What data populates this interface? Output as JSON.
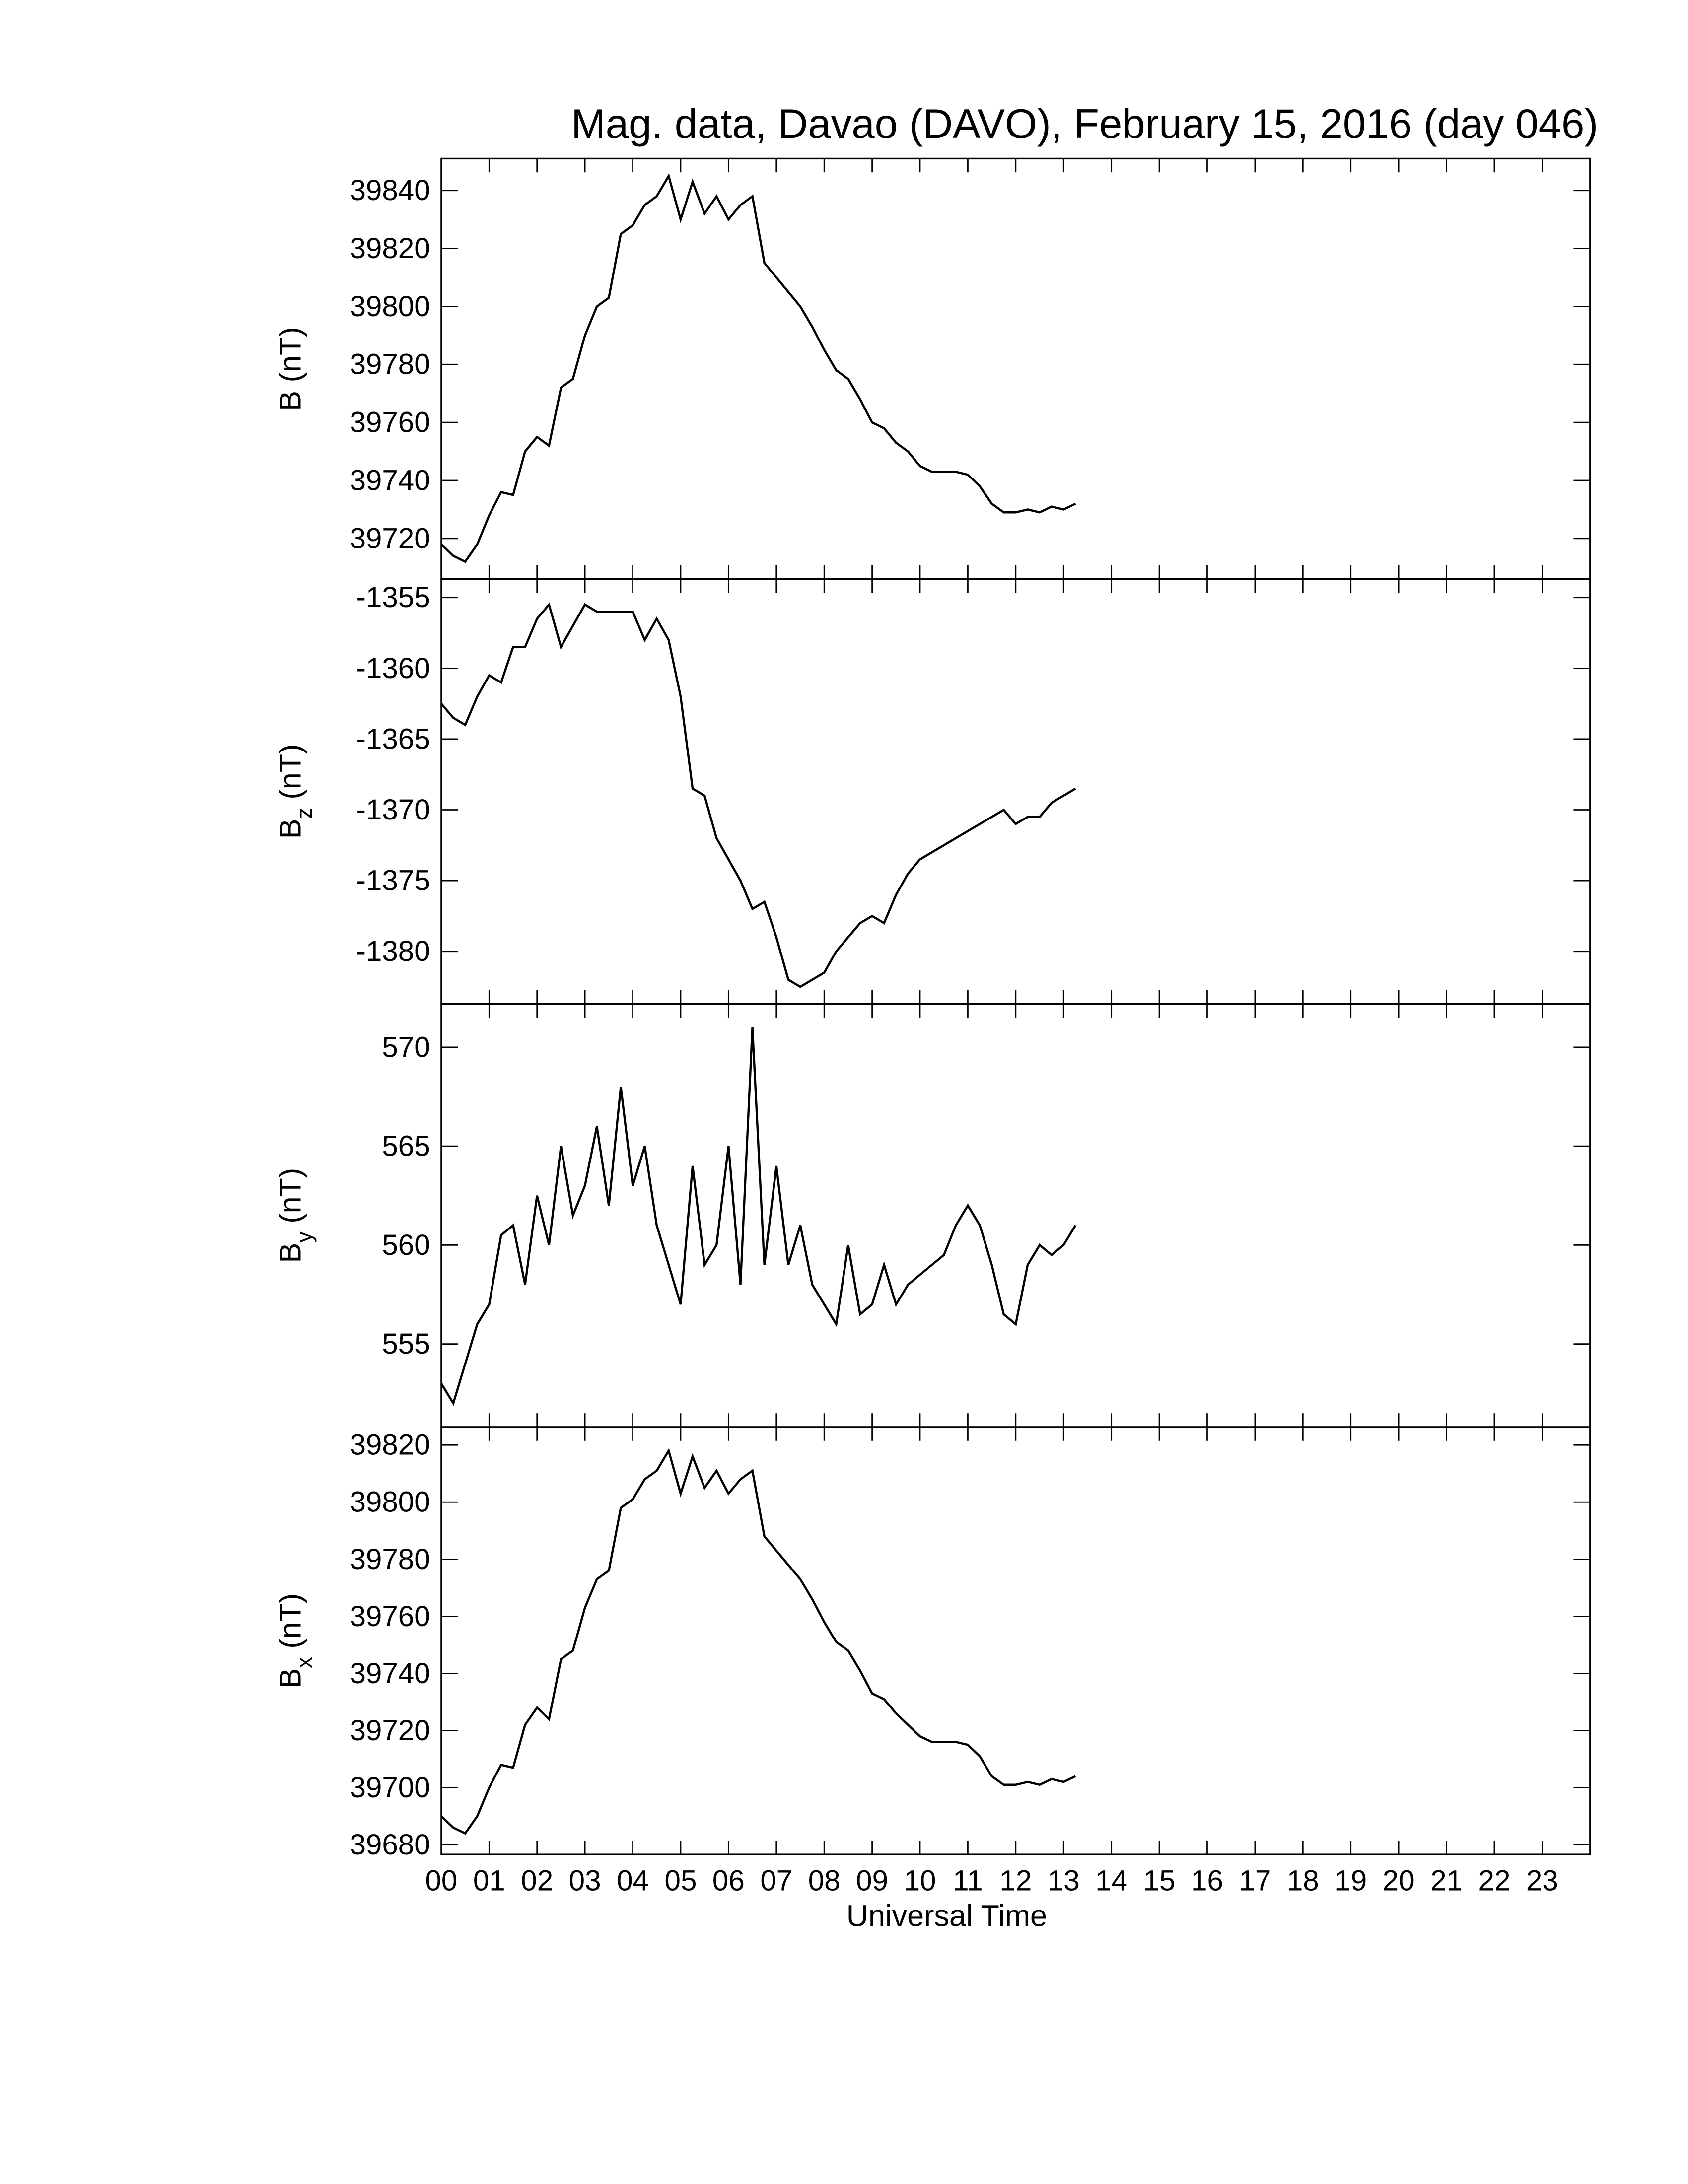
{
  "chart_data": [
    {
      "type": "line",
      "title": "Mag. data, Davao (DAVO), February 15, 2016 (day 046)",
      "ylabel": "B",
      "ylabel_unit": "(nT)",
      "x": [
        0,
        0.25,
        0.5,
        0.75,
        1,
        1.25,
        1.5,
        1.75,
        2,
        2.25,
        2.5,
        2.75,
        3,
        3.25,
        3.5,
        3.75,
        4,
        4.25,
        4.5,
        4.75,
        5,
        5.25,
        5.5,
        5.75,
        6,
        6.25,
        6.5,
        6.75,
        7,
        7.25,
        7.5,
        7.75,
        8,
        8.25,
        8.5,
        8.75,
        9,
        9.25,
        9.5,
        9.75,
        10,
        10.25,
        10.5,
        10.75,
        11,
        11.25,
        11.5,
        11.75,
        12,
        12.25,
        12.5,
        12.75,
        13,
        13.25
      ],
      "series": [
        {
          "color": "#000000",
          "values": [
            39718,
            39714,
            39712,
            39718,
            39728,
            39736,
            39735,
            39750,
            39755,
            39752,
            39772,
            39775,
            39790,
            39800,
            39803,
            39825,
            39828,
            39835,
            39838,
            39845,
            39830,
            39843,
            39832,
            39838,
            39830,
            39835,
            39838,
            39815,
            39810,
            39805,
            39800,
            39793,
            39785,
            39778,
            39775,
            39768,
            39760,
            39758,
            39753,
            39750,
            39745,
            39743,
            39743,
            39743,
            39742,
            39738,
            39732,
            39729,
            39729,
            39730,
            39729,
            39731,
            39730,
            39732
          ]
        }
      ],
      "xlim": [
        0,
        24
      ],
      "ylim": [
        39706,
        39851
      ],
      "yticks": [
        39720,
        39740,
        39760,
        39780,
        39800,
        39820,
        39840
      ]
    },
    {
      "type": "line",
      "ylabel": "B",
      "ylabel_sub": "z",
      "ylabel_unit": "(nT)",
      "x": [
        0,
        0.25,
        0.5,
        0.75,
        1,
        1.25,
        1.5,
        1.75,
        2,
        2.25,
        2.5,
        2.75,
        3,
        3.25,
        3.5,
        3.75,
        4,
        4.25,
        4.5,
        4.75,
        5,
        5.25,
        5.5,
        5.75,
        6,
        6.25,
        6.5,
        6.75,
        7,
        7.25,
        7.5,
        7.75,
        8,
        8.25,
        8.5,
        8.75,
        9,
        9.25,
        9.5,
        9.75,
        10,
        10.25,
        10.5,
        10.75,
        11,
        11.25,
        11.5,
        11.75,
        12,
        12.25,
        12.5,
        12.75,
        13,
        13.25
      ],
      "series": [
        {
          "color": "#000000",
          "values": [
            -1362.5,
            -1363.5,
            -1364,
            -1362,
            -1360.5,
            -1361,
            -1358.5,
            -1358.5,
            -1356.5,
            -1355.5,
            -1358.5,
            -1357,
            -1355.5,
            -1356,
            -1356,
            -1356,
            -1356,
            -1358,
            -1356.5,
            -1358,
            -1362,
            -1368.5,
            -1369,
            -1372,
            -1373.5,
            -1375,
            -1377,
            -1376.5,
            -1379,
            -1382,
            -1382.5,
            -1382,
            -1381.5,
            -1380,
            -1379,
            -1378,
            -1377.5,
            -1378,
            -1376,
            -1374.5,
            -1373.5,
            -1373,
            -1372.5,
            -1372,
            -1371.5,
            -1371,
            -1370.5,
            -1370,
            -1371,
            -1370.5,
            -1370.5,
            -1369.5,
            -1369,
            -1368.5
          ]
        }
      ],
      "xlim": [
        0,
        24
      ],
      "ylim": [
        -1383.7,
        -1353.7
      ],
      "yticks": [
        -1380,
        -1375,
        -1370,
        -1365,
        -1360,
        -1355
      ]
    },
    {
      "type": "line",
      "ylabel": "B",
      "ylabel_sub": "y",
      "ylabel_unit": "(nT)",
      "x": [
        0,
        0.25,
        0.5,
        0.75,
        1,
        1.25,
        1.5,
        1.75,
        2,
        2.25,
        2.5,
        2.75,
        3,
        3.25,
        3.5,
        3.75,
        4,
        4.25,
        4.5,
        4.75,
        5,
        5.25,
        5.5,
        5.75,
        6,
        6.25,
        6.5,
        6.75,
        7,
        7.25,
        7.5,
        7.75,
        8,
        8.25,
        8.5,
        8.75,
        9,
        9.25,
        9.5,
        9.75,
        10,
        10.25,
        10.5,
        10.75,
        11,
        11.25,
        11.5,
        11.75,
        12,
        12.25,
        12.5,
        12.75,
        13,
        13.25
      ],
      "series": [
        {
          "color": "#000000",
          "values": [
            553,
            552,
            554,
            556,
            557,
            560.5,
            561,
            558,
            562.5,
            560,
            565,
            561.5,
            563,
            566,
            562,
            568,
            563,
            565,
            561,
            559,
            557,
            564,
            559,
            560,
            565,
            558,
            571,
            559,
            564,
            559,
            561,
            558,
            557,
            556,
            560,
            556.5,
            557,
            559,
            557,
            558,
            558.5,
            559,
            559.5,
            561,
            562,
            561,
            559,
            556.5,
            556,
            559,
            560,
            559.5,
            560,
            561
          ]
        }
      ],
      "xlim": [
        0,
        24
      ],
      "ylim": [
        550.8,
        572.2
      ],
      "yticks": [
        555,
        560,
        565,
        570
      ]
    },
    {
      "type": "line",
      "ylabel": "B",
      "ylabel_sub": "x",
      "ylabel_unit": "(nT)",
      "xlabel": "Universal Time",
      "x": [
        0,
        0.25,
        0.5,
        0.75,
        1,
        1.25,
        1.5,
        1.75,
        2,
        2.25,
        2.5,
        2.75,
        3,
        3.25,
        3.5,
        3.75,
        4,
        4.25,
        4.5,
        4.75,
        5,
        5.25,
        5.5,
        5.75,
        6,
        6.25,
        6.5,
        6.75,
        7,
        7.25,
        7.5,
        7.75,
        8,
        8.25,
        8.5,
        8.75,
        9,
        9.25,
        9.5,
        9.75,
        10,
        10.25,
        10.5,
        10.75,
        11,
        11.25,
        11.5,
        11.75,
        12,
        12.25,
        12.5,
        12.75,
        13,
        13.25
      ],
      "series": [
        {
          "color": "#000000",
          "values": [
            39690,
            39686,
            39684,
            39690,
            39700,
            39708,
            39707,
            39722,
            39728,
            39724,
            39745,
            39748,
            39763,
            39773,
            39776,
            39798,
            39801,
            39808,
            39811,
            39818,
            39803,
            39816,
            39805,
            39811,
            39803,
            39808,
            39811,
            39788,
            39783,
            39778,
            39773,
            39766,
            39758,
            39751,
            39748,
            39741,
            39733,
            39731,
            39726,
            39722,
            39718,
            39716,
            39716,
            39716,
            39715,
            39711,
            39704,
            39701,
            39701,
            39702,
            39701,
            39703,
            39702,
            39704
          ]
        }
      ],
      "xlim": [
        0,
        24
      ],
      "ylim": [
        39676.6,
        39826.3
      ],
      "yticks": [
        39680,
        39700,
        39720,
        39740,
        39760,
        39780,
        39800,
        39820
      ],
      "xticks": [
        {
          "value": 0,
          "label": "00"
        },
        {
          "value": 1,
          "label": "01"
        },
        {
          "value": 2,
          "label": "02"
        },
        {
          "value": 3,
          "label": "03"
        },
        {
          "value": 4,
          "label": "04"
        },
        {
          "value": 5,
          "label": "05"
        },
        {
          "value": 6,
          "label": "06"
        },
        {
          "value": 7,
          "label": "07"
        },
        {
          "value": 8,
          "label": "08"
        },
        {
          "value": 9,
          "label": "09"
        },
        {
          "value": 10,
          "label": "10"
        },
        {
          "value": 11,
          "label": "11"
        },
        {
          "value": 12,
          "label": "12"
        },
        {
          "value": 13,
          "label": "13"
        },
        {
          "value": 14,
          "label": "14"
        },
        {
          "value": 15,
          "label": "15"
        },
        {
          "value": 16,
          "label": "16"
        },
        {
          "value": 17,
          "label": "17"
        },
        {
          "value": 18,
          "label": "18"
        },
        {
          "value": 19,
          "label": "19"
        },
        {
          "value": 20,
          "label": "20"
        },
        {
          "value": 21,
          "label": "21"
        },
        {
          "value": 22,
          "label": "22"
        },
        {
          "value": 23,
          "label": "23"
        }
      ]
    }
  ]
}
